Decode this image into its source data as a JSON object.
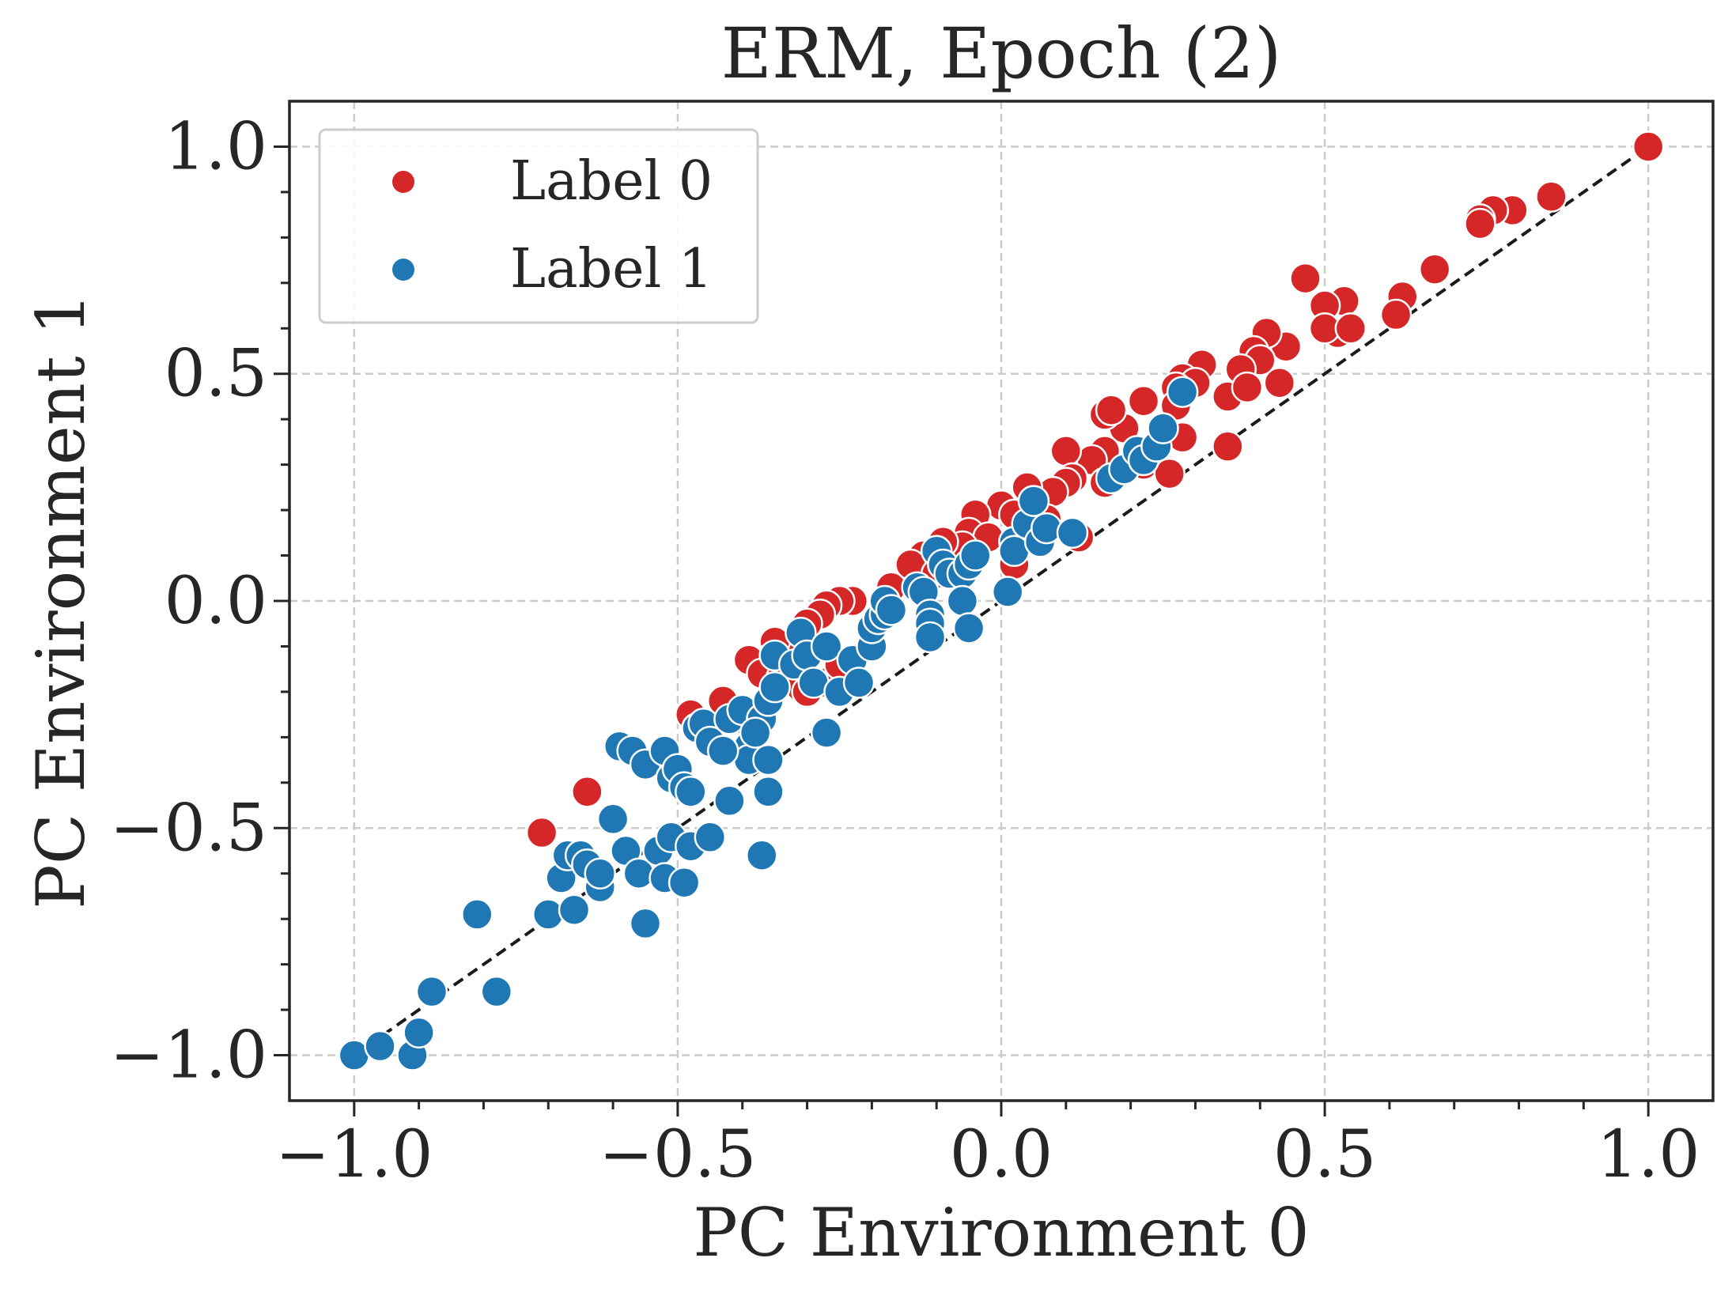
{
  "chart_data": {
    "type": "scatter",
    "title": "ERM, Epoch (2)",
    "xlabel": "PC Environment 0",
    "ylabel": "PC Environment 1",
    "xlim": [
      -1.1,
      1.1
    ],
    "ylim": [
      -1.1,
      1.1
    ],
    "xticks": [
      -1.0,
      -0.5,
      0.0,
      0.5,
      1.0
    ],
    "yticks": [
      -1.0,
      -0.5,
      0.0,
      0.5,
      1.0
    ],
    "xtick_labels": [
      "−1.0",
      "−0.5",
      "0.0",
      "0.5",
      "1.0"
    ],
    "ytick_labels": [
      "−1.0",
      "−0.5",
      "0.0",
      "0.5",
      "1.0"
    ],
    "grid": true,
    "legend_position": "top-left",
    "reference_line": {
      "style": "dashed",
      "color": "#1a1a1a",
      "from": [
        -1.0,
        -1.0
      ],
      "to": [
        1.0,
        1.0
      ]
    },
    "series": [
      {
        "name": "Label 0",
        "color": "#d62728",
        "points": [
          [
            1.0,
            1.0
          ],
          [
            0.85,
            0.89
          ],
          [
            0.79,
            0.86
          ],
          [
            0.76,
            0.86
          ],
          [
            0.74,
            0.84
          ],
          [
            0.74,
            0.83
          ],
          [
            0.67,
            0.73
          ],
          [
            0.62,
            0.67
          ],
          [
            0.61,
            0.63
          ],
          [
            0.53,
            0.66
          ],
          [
            0.5,
            0.65
          ],
          [
            0.52,
            0.59
          ],
          [
            0.5,
            0.6
          ],
          [
            0.54,
            0.6
          ],
          [
            0.47,
            0.71
          ],
          [
            0.44,
            0.56
          ],
          [
            0.43,
            0.48
          ],
          [
            0.41,
            0.59
          ],
          [
            0.39,
            0.55
          ],
          [
            0.4,
            0.53
          ],
          [
            0.37,
            0.51
          ],
          [
            0.35,
            0.45
          ],
          [
            0.38,
            0.47
          ],
          [
            0.31,
            0.52
          ],
          [
            0.28,
            0.49
          ],
          [
            0.3,
            0.48
          ],
          [
            0.27,
            0.47
          ],
          [
            0.27,
            0.43
          ],
          [
            0.22,
            0.44
          ],
          [
            0.28,
            0.36
          ],
          [
            0.19,
            0.38
          ],
          [
            0.16,
            0.41
          ],
          [
            0.17,
            0.42
          ],
          [
            0.16,
            0.33
          ],
          [
            0.14,
            0.31
          ],
          [
            0.16,
            0.26
          ],
          [
            0.23,
            0.32
          ],
          [
            0.22,
            0.3
          ],
          [
            0.26,
            0.28
          ],
          [
            0.35,
            0.34
          ],
          [
            0.1,
            0.33
          ],
          [
            0.11,
            0.27
          ],
          [
            0.1,
            0.26
          ],
          [
            0.08,
            0.24
          ],
          [
            0.04,
            0.25
          ],
          [
            0.05,
            0.22
          ],
          [
            0.0,
            0.21
          ],
          [
            0.02,
            0.19
          ],
          [
            -0.04,
            0.19
          ],
          [
            -0.05,
            0.15
          ],
          [
            -0.02,
            0.14
          ],
          [
            -0.06,
            0.12
          ],
          [
            -0.09,
            0.13
          ],
          [
            -0.12,
            0.1
          ],
          [
            -0.14,
            0.08
          ],
          [
            -0.1,
            0.06
          ],
          [
            0.02,
            0.08
          ],
          [
            0.12,
            0.14
          ],
          [
            0.07,
            0.18
          ],
          [
            -0.17,
            0.03
          ],
          [
            -0.23,
            0.0
          ],
          [
            -0.25,
            0.0
          ],
          [
            -0.27,
            -0.01
          ],
          [
            -0.28,
            -0.03
          ],
          [
            -0.3,
            -0.05
          ],
          [
            -0.31,
            -0.08
          ],
          [
            -0.34,
            -0.1
          ],
          [
            -0.35,
            -0.09
          ],
          [
            -0.36,
            -0.13
          ],
          [
            -0.39,
            -0.13
          ],
          [
            -0.37,
            -0.16
          ],
          [
            -0.34,
            -0.17
          ],
          [
            -0.31,
            -0.19
          ],
          [
            -0.3,
            -0.2
          ],
          [
            -0.27,
            -0.18
          ],
          [
            -0.25,
            -0.14
          ],
          [
            -0.43,
            -0.22
          ],
          [
            -0.45,
            -0.28
          ],
          [
            -0.48,
            -0.25
          ],
          [
            -0.4,
            -0.26
          ],
          [
            -0.64,
            -0.42
          ],
          [
            -0.71,
            -0.51
          ]
        ]
      },
      {
        "name": "Label 1",
        "color": "#1f77b4",
        "points": [
          [
            -1.0,
            -1.0
          ],
          [
            -0.96,
            -0.98
          ],
          [
            -0.91,
            -1.0
          ],
          [
            -0.9,
            -0.95
          ],
          [
            -0.88,
            -0.86
          ],
          [
            -0.81,
            -0.69
          ],
          [
            -0.78,
            -0.86
          ],
          [
            -0.7,
            -0.69
          ],
          [
            -0.68,
            -0.61
          ],
          [
            -0.66,
            -0.68
          ],
          [
            -0.67,
            -0.56
          ],
          [
            -0.65,
            -0.56
          ],
          [
            -0.64,
            -0.58
          ],
          [
            -0.62,
            -0.63
          ],
          [
            -0.62,
            -0.6
          ],
          [
            -0.6,
            -0.48
          ],
          [
            -0.58,
            -0.55
          ],
          [
            -0.56,
            -0.6
          ],
          [
            -0.55,
            -0.71
          ],
          [
            -0.53,
            -0.55
          ],
          [
            -0.52,
            -0.61
          ],
          [
            -0.51,
            -0.52
          ],
          [
            -0.49,
            -0.62
          ],
          [
            -0.48,
            -0.54
          ],
          [
            -0.45,
            -0.52
          ],
          [
            -0.42,
            -0.44
          ],
          [
            -0.37,
            -0.56
          ],
          [
            -0.36,
            -0.42
          ],
          [
            -0.59,
            -0.32
          ],
          [
            -0.57,
            -0.33
          ],
          [
            -0.55,
            -0.36
          ],
          [
            -0.52,
            -0.33
          ],
          [
            -0.51,
            -0.39
          ],
          [
            -0.5,
            -0.37
          ],
          [
            -0.49,
            -0.41
          ],
          [
            -0.48,
            -0.42
          ],
          [
            -0.47,
            -0.28
          ],
          [
            -0.46,
            -0.27
          ],
          [
            -0.45,
            -0.31
          ],
          [
            -0.42,
            -0.26
          ],
          [
            -0.4,
            -0.24
          ],
          [
            -0.39,
            -0.32
          ],
          [
            -0.39,
            -0.35
          ],
          [
            -0.37,
            -0.26
          ],
          [
            -0.36,
            -0.35
          ],
          [
            -0.36,
            -0.22
          ],
          [
            -0.35,
            -0.19
          ],
          [
            -0.35,
            -0.12
          ],
          [
            -0.32,
            -0.14
          ],
          [
            -0.31,
            -0.07
          ],
          [
            -0.3,
            -0.12
          ],
          [
            -0.29,
            -0.18
          ],
          [
            -0.27,
            -0.1
          ],
          [
            -0.27,
            -0.29
          ],
          [
            -0.25,
            -0.2
          ],
          [
            -0.23,
            -0.13
          ],
          [
            -0.22,
            -0.18
          ],
          [
            -0.2,
            -0.1
          ],
          [
            -0.2,
            -0.06
          ],
          [
            -0.19,
            -0.04
          ],
          [
            -0.18,
            -0.03
          ],
          [
            -0.18,
            0.0
          ],
          [
            -0.17,
            -0.02
          ],
          [
            -0.13,
            0.03
          ],
          [
            -0.12,
            0.02
          ],
          [
            -0.11,
            -0.03
          ],
          [
            -0.11,
            -0.05
          ],
          [
            -0.11,
            -0.08
          ],
          [
            -0.1,
            0.11
          ],
          [
            -0.09,
            0.08
          ],
          [
            -0.08,
            0.06
          ],
          [
            -0.06,
            0.06
          ],
          [
            -0.05,
            0.08
          ],
          [
            -0.04,
            0.1
          ],
          [
            -0.06,
            0.0
          ],
          [
            -0.05,
            -0.06
          ],
          [
            0.01,
            0.02
          ],
          [
            0.02,
            0.13
          ],
          [
            0.02,
            0.11
          ],
          [
            0.04,
            0.17
          ],
          [
            0.05,
            0.22
          ],
          [
            0.06,
            0.13
          ],
          [
            0.07,
            0.16
          ],
          [
            0.11,
            0.15
          ],
          [
            0.17,
            0.27
          ],
          [
            0.19,
            0.29
          ],
          [
            0.21,
            0.33
          ],
          [
            0.22,
            0.31
          ],
          [
            0.24,
            0.34
          ],
          [
            0.25,
            0.38
          ],
          [
            0.28,
            0.46
          ],
          [
            -0.38,
            -0.29
          ],
          [
            -0.43,
            -0.33
          ]
        ]
      }
    ]
  }
}
